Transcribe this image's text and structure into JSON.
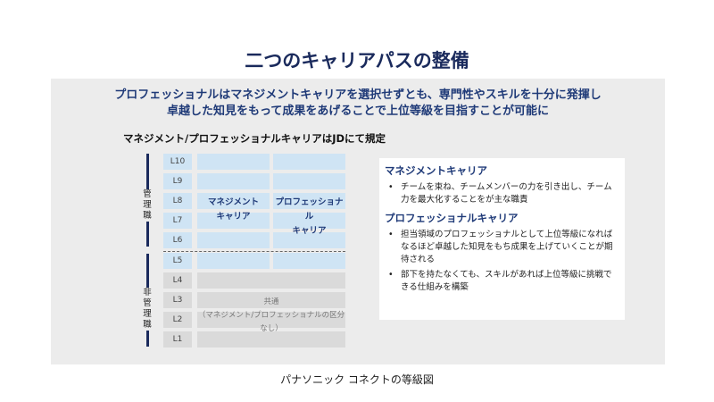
{
  "title": "二つのキャリアパスの整備",
  "subtitle_lines": [
    "プロフェッショナルはマネジメントキャリアを選択せずとも、専門性やスキルを十分に発揮し",
    "卓越した知見をもって成果をあげることで上位等級を目指すことが可能に"
  ],
  "diagram": {
    "title": "マネジメント/プロフェッショナルキャリアはJDにて規定",
    "levels": [
      "L10",
      "L9",
      "L8",
      "L7",
      "L6",
      "L5",
      "L4",
      "L3",
      "L2",
      "L1"
    ],
    "management_label": "管理職",
    "non_management_label": "非管理職",
    "management_career": [
      "マネジメント",
      "キャリア"
    ],
    "professional_career": [
      "プロフェッショナル",
      "キャリア"
    ],
    "common": [
      "共通",
      "（マネジメント/プロフェッショナルの区分なし）"
    ],
    "colors": {
      "career_cell": "#cfe4f4",
      "common_cell": "#dadada",
      "accent": "#1a2a5c"
    }
  },
  "explanation": {
    "management": {
      "heading": "マネジメントキャリア",
      "bullets": [
        "チームを束ね、チームメンバーの力を引き出し、チーム力を最大化することをが主な職責"
      ]
    },
    "professional": {
      "heading": "プロフェッショナルキャリア",
      "bullets": [
        "担当領域のプロフェッショナルとして上位等級になればなるほど卓越した知見をもち成果を上げていくことが期待される",
        "部下を持たなくても、スキルがあれば上位等級に挑戦できる仕組みを構築"
      ]
    }
  },
  "caption": "パナソニック コネクトの等級図"
}
